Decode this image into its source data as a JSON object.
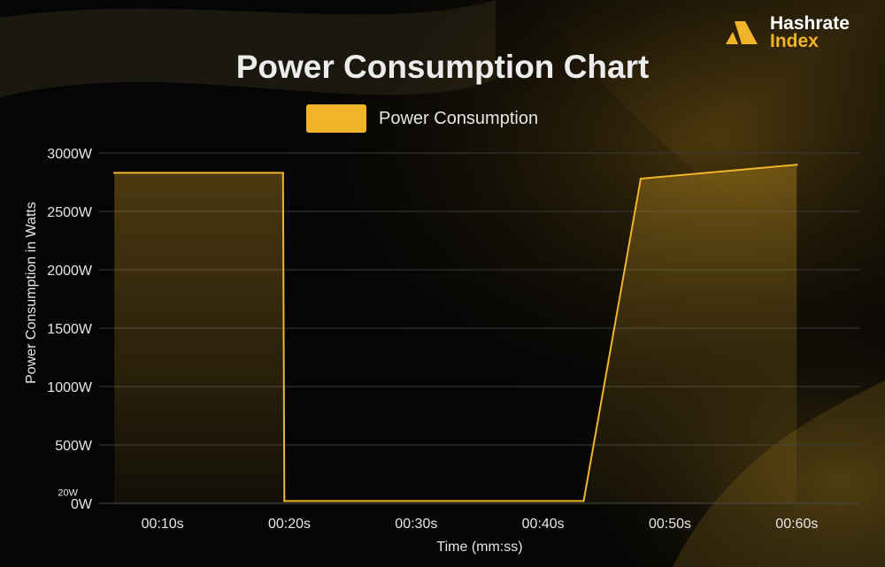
{
  "brand": {
    "name": "Hashrate",
    "sub": "Index",
    "accent": "#f0b429"
  },
  "chart_data": {
    "type": "area",
    "title": "Power Consumption Chart",
    "xlabel": "Time (mm:ss)",
    "ylabel": "Power Consumption in Watts",
    "ylim": [
      0,
      3000
    ],
    "x_ticks": [
      "00:10s",
      "00:20s",
      "00:30s",
      "00:40s",
      "00:50s",
      "00:60s"
    ],
    "y_ticks": [
      {
        "value": 0,
        "label": "0W"
      },
      {
        "value": 20,
        "label": "20W"
      },
      {
        "value": 500,
        "label": "500W"
      },
      {
        "value": 1000,
        "label": "1000W"
      },
      {
        "value": 1500,
        "label": "1500W"
      },
      {
        "value": 2000,
        "label": "2000W"
      },
      {
        "value": 2500,
        "label": "2500W"
      },
      {
        "value": 3000,
        "label": "3000W"
      }
    ],
    "grid": true,
    "legend_position": "top-center",
    "series": [
      {
        "name": "Power Consumption",
        "color": "#f0b429",
        "points": [
          {
            "x": 6.2,
            "y": 2830
          },
          {
            "x": 19.5,
            "y": 2830
          },
          {
            "x": 19.6,
            "y": 20
          },
          {
            "x": 43.2,
            "y": 20
          },
          {
            "x": 47.7,
            "y": 2780
          },
          {
            "x": 60,
            "y": 2900
          }
        ]
      }
    ]
  }
}
